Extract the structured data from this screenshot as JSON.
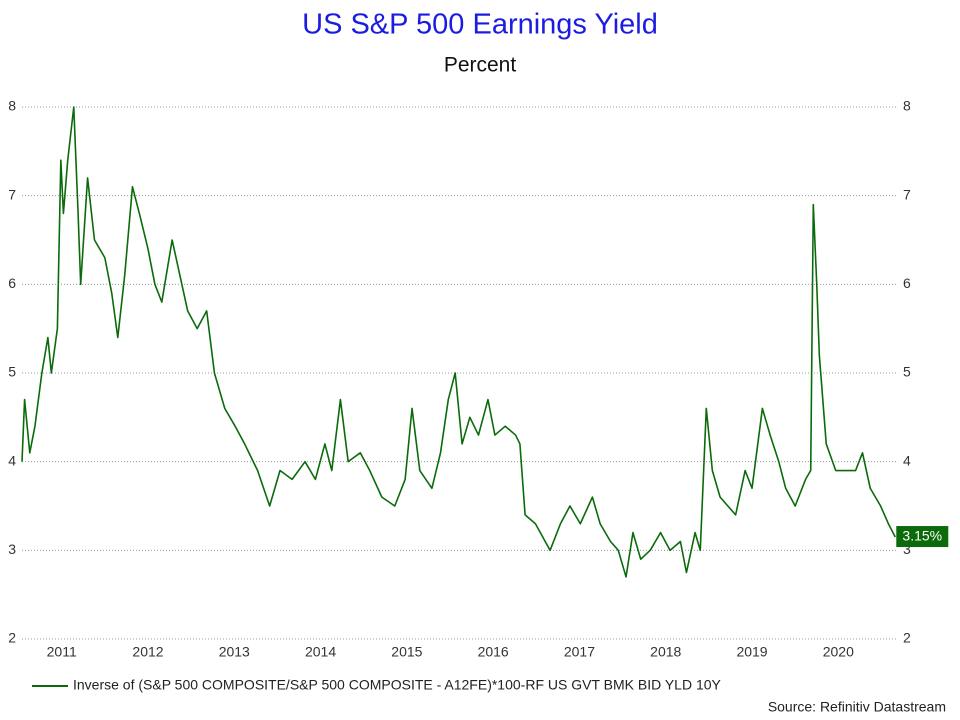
{
  "chart_data": {
    "type": "line",
    "title": "US S&P 500 Earnings Yield",
    "subtitle": "Percent",
    "source": "Source: Refinitiv Datastream",
    "x": [
      2011.04,
      2011.07,
      2011.13,
      2011.19,
      2011.27,
      2011.34,
      2011.38,
      2011.45,
      2011.49,
      2011.52,
      2011.57,
      2011.64,
      2011.69,
      2011.72,
      2011.8,
      2011.88,
      2012.0,
      2012.08,
      2012.15,
      2012.23,
      2012.32,
      2012.4,
      2012.5,
      2012.58,
      2012.66,
      2012.78,
      2012.87,
      2012.96,
      2013.07,
      2013.18,
      2013.27,
      2013.39,
      2013.51,
      2013.62,
      2013.77,
      2013.91,
      2014.03,
      2014.17,
      2014.32,
      2014.44,
      2014.55,
      2014.63,
      2014.73,
      2014.82,
      2014.96,
      2015.07,
      2015.21,
      2015.36,
      2015.48,
      2015.56,
      2015.65,
      2015.79,
      2015.89,
      2015.98,
      2016.06,
      2016.14,
      2016.23,
      2016.33,
      2016.44,
      2016.52,
      2016.64,
      2016.76,
      2016.81,
      2016.87,
      2016.99,
      2017.16,
      2017.28,
      2017.39,
      2017.51,
      2017.65,
      2017.74,
      2017.86,
      2017.95,
      2018.04,
      2018.12,
      2018.21,
      2018.32,
      2018.44,
      2018.55,
      2018.67,
      2018.74,
      2018.84,
      2018.9,
      2018.97,
      2019.04,
      2019.13,
      2019.31,
      2019.42,
      2019.5,
      2019.62,
      2019.71,
      2019.81,
      2019.89,
      2020.0,
      2020.12,
      2020.18,
      2020.21,
      2020.25,
      2020.28,
      2020.32,
      2020.36,
      2020.47,
      2020.58,
      2020.7,
      2020.78,
      2020.87,
      2020.99,
      2021.08,
      2021.16
    ],
    "series": [
      {
        "name": "Inverse of (S&P 500 COMPOSITE/S&P 500 COMPOSITE - A12FE)*100-RF US GVT BMK BID YLD 10Y",
        "color": "#0b6b0b",
        "values": [
          4.0,
          4.7,
          4.1,
          4.4,
          5.0,
          5.4,
          5.0,
          5.5,
          7.4,
          6.8,
          7.4,
          8.0,
          6.8,
          6.0,
          7.2,
          6.5,
          6.3,
          5.9,
          5.4,
          6.1,
          7.1,
          6.8,
          6.4,
          6.0,
          5.8,
          6.5,
          6.1,
          5.7,
          5.5,
          5.7,
          5.0,
          4.6,
          4.4,
          4.2,
          3.9,
          3.5,
          3.9,
          3.8,
          4.0,
          3.8,
          4.2,
          3.9,
          4.7,
          4.0,
          4.1,
          3.9,
          3.6,
          3.5,
          3.8,
          4.6,
          3.9,
          3.7,
          4.1,
          4.7,
          5.0,
          4.2,
          4.5,
          4.3,
          4.7,
          4.3,
          4.4,
          4.3,
          4.2,
          3.4,
          3.3,
          3.0,
          3.3,
          3.5,
          3.3,
          3.6,
          3.3,
          3.1,
          3.0,
          2.7,
          3.2,
          2.9,
          3.0,
          3.2,
          3.0,
          3.1,
          2.75,
          3.2,
          3.0,
          4.6,
          3.9,
          3.6,
          3.4,
          3.9,
          3.7,
          4.6,
          4.3,
          4.0,
          3.7,
          3.5,
          3.8,
          3.9,
          6.9,
          6.0,
          5.2,
          4.7,
          4.2,
          3.9,
          3.9,
          3.9,
          4.1,
          3.7,
          3.5,
          3.3,
          3.15
        ],
        "value_labels": [
          null,
          null,
          null,
          null,
          null,
          null,
          null,
          null,
          null,
          null,
          null,
          null,
          null,
          null,
          null,
          null,
          null,
          null,
          null,
          null,
          null,
          null,
          null,
          null,
          null,
          null,
          null,
          null,
          null,
          null,
          null,
          null,
          null,
          null,
          null,
          null,
          null,
          null,
          null,
          null,
          null,
          null,
          null,
          null,
          null,
          null,
          null,
          null,
          null,
          null,
          null,
          null,
          null,
          null,
          null,
          null,
          null,
          null,
          null,
          null,
          null,
          null,
          null,
          null,
          null,
          null,
          null,
          null,
          null,
          null,
          null,
          null,
          null,
          null,
          null,
          null,
          null,
          null,
          null,
          null,
          null,
          null,
          null,
          null,
          null,
          null,
          null,
          null,
          null,
          null,
          null,
          null,
          null,
          null,
          null,
          null,
          null,
          null,
          null,
          null,
          null,
          null,
          null,
          null,
          null,
          null,
          null,
          null,
          "3.15%"
        ]
      }
    ],
    "xlim": [
      2011.04,
      2021.18
    ],
    "xticks": [
      {
        "value": 2011.5,
        "label": "2011"
      },
      {
        "value": 2012.5,
        "label": "2012"
      },
      {
        "value": 2013.5,
        "label": "2013"
      },
      {
        "value": 2014.5,
        "label": "2014"
      },
      {
        "value": 2015.5,
        "label": "2015"
      },
      {
        "value": 2016.5,
        "label": "2016"
      },
      {
        "value": 2017.5,
        "label": "2017"
      },
      {
        "value": 2018.5,
        "label": "2018"
      },
      {
        "value": 2019.5,
        "label": "2019"
      },
      {
        "value": 2020.5,
        "label": "2020"
      }
    ],
    "ylim": [
      2,
      8
    ],
    "yticks": [
      2,
      3,
      4,
      5,
      6,
      7,
      8
    ],
    "y2lim": [
      2,
      8
    ],
    "y2ticks": [
      2,
      3,
      4,
      5,
      6,
      7,
      8
    ],
    "grid": true,
    "legend": "bottom"
  }
}
